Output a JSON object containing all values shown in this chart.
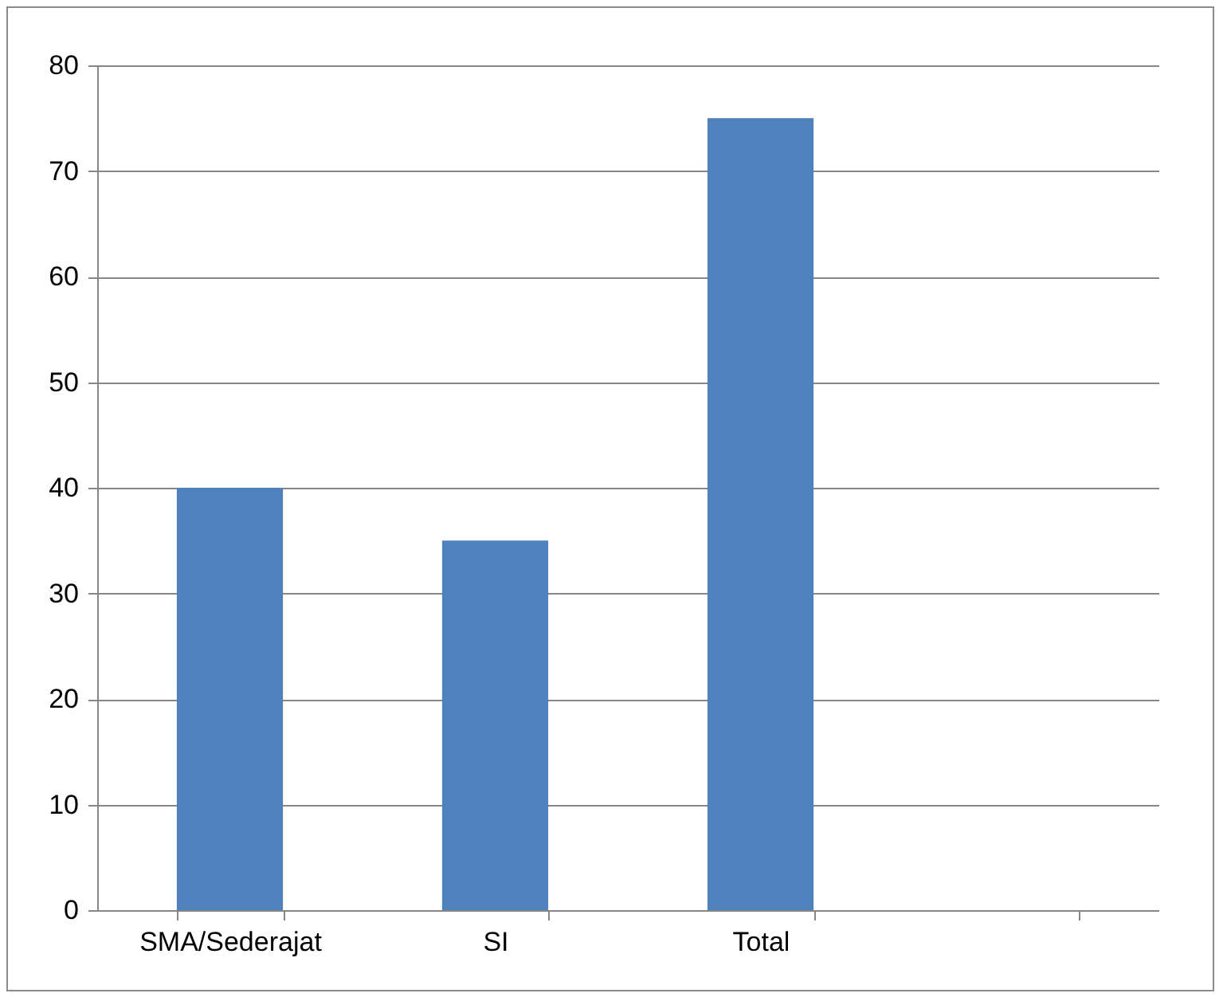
{
  "chart_data": {
    "type": "bar",
    "categories": [
      "SMA/Sederajat",
      "SI",
      "Total",
      null
    ],
    "values": [
      40,
      35,
      75,
      null
    ],
    "color": "#4f81bd",
    "ylim": [
      0,
      80
    ],
    "yticks": [
      0,
      10,
      20,
      30,
      40,
      50,
      60,
      70,
      80
    ],
    "grid": "y"
  }
}
